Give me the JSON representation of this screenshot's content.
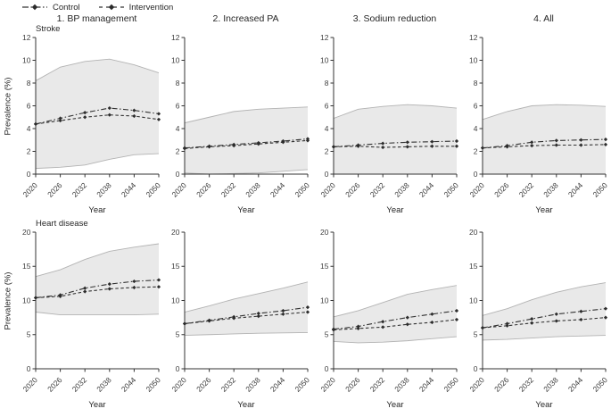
{
  "legend": {
    "items": [
      {
        "label": "Control",
        "style": "dashdot"
      },
      {
        "label": "Intervention",
        "style": "dashed"
      }
    ]
  },
  "columns": [
    "1. BP management",
    "2. Increased PA",
    "3. Sodium reduction",
    "4. All"
  ],
  "rows": [
    "Stroke",
    "Heart disease"
  ],
  "axes": {
    "x_label": "Year",
    "y_label": "Prevalence (%)",
    "x_ticks": [
      2020,
      2026,
      2032,
      2038,
      2044,
      2050
    ]
  },
  "colors": {
    "line": "#333333",
    "marker": "#2b2b2b",
    "band_fill": "#e9e9e9",
    "band_edge": "#b3b3b3",
    "axis": "#333333",
    "tick_text": "#404040"
  },
  "chart_data": {
    "type": "line",
    "x_label": "Year",
    "y_label": "Prevalence (%)",
    "x": [
      2020,
      2026,
      2032,
      2038,
      2044,
      2050
    ],
    "legend_position": "top-left",
    "grid": false,
    "panels": [
      {
        "row": "Stroke",
        "column": "1. BP management",
        "ylim": [
          0,
          12
        ],
        "yticks": [
          0,
          2,
          4,
          6,
          8,
          10,
          12
        ],
        "series": [
          {
            "name": "Control",
            "style": "dashdot",
            "values": [
              4.4,
              4.9,
              5.4,
              5.8,
              5.6,
              5.3
            ]
          },
          {
            "name": "Intervention",
            "style": "dashed",
            "values": [
              4.4,
              4.7,
              5.0,
              5.2,
              5.1,
              4.8
            ]
          }
        ],
        "band": {
          "upper": [
            8.2,
            9.4,
            9.9,
            10.1,
            9.6,
            8.9
          ],
          "lower": [
            0.5,
            0.6,
            0.8,
            1.3,
            1.7,
            1.8
          ]
        }
      },
      {
        "row": "Stroke",
        "column": "2. Increased PA",
        "ylim": [
          0,
          12
        ],
        "yticks": [
          0,
          2,
          4,
          6,
          8,
          10,
          12
        ],
        "series": [
          {
            "name": "Control",
            "style": "dashdot",
            "values": [
              2.3,
              2.45,
              2.6,
              2.75,
              2.9,
              3.1
            ]
          },
          {
            "name": "Intervention",
            "style": "dashed",
            "values": [
              2.25,
              2.4,
              2.5,
              2.65,
              2.8,
              2.95
            ]
          }
        ],
        "band": {
          "upper": [
            4.5,
            5.0,
            5.5,
            5.7,
            5.8,
            5.9
          ],
          "lower": [
            0.1,
            0.0,
            0.05,
            0.1,
            0.25,
            0.4
          ]
        }
      },
      {
        "row": "Stroke",
        "column": "3. Sodium reduction",
        "ylim": [
          0,
          12
        ],
        "yticks": [
          0,
          2,
          4,
          6,
          8,
          10,
          12
        ],
        "series": [
          {
            "name": "Control",
            "style": "dashdot",
            "values": [
              2.4,
              2.55,
              2.7,
              2.8,
              2.85,
              2.9
            ]
          },
          {
            "name": "Intervention",
            "style": "dashed",
            "values": [
              2.4,
              2.45,
              2.35,
              2.4,
              2.45,
              2.45
            ]
          }
        ],
        "band": {
          "upper": [
            4.9,
            5.7,
            5.95,
            6.1,
            6.0,
            5.8
          ],
          "lower": [
            0.0,
            0.0,
            0.0,
            0.0,
            0.0,
            0.0
          ]
        }
      },
      {
        "row": "Stroke",
        "column": "4. All",
        "ylim": [
          0,
          12
        ],
        "yticks": [
          0,
          2,
          4,
          6,
          8,
          10,
          12
        ],
        "series": [
          {
            "name": "Control",
            "style": "dashdot",
            "values": [
              2.3,
              2.5,
              2.8,
              2.95,
              3.0,
              3.05
            ]
          },
          {
            "name": "Intervention",
            "style": "dashed",
            "values": [
              2.3,
              2.4,
              2.5,
              2.55,
              2.55,
              2.6
            ]
          }
        ],
        "band": {
          "upper": [
            4.8,
            5.5,
            6.0,
            6.1,
            6.05,
            5.95
          ],
          "lower": [
            0.0,
            0.0,
            0.0,
            0.0,
            0.0,
            0.0
          ]
        }
      },
      {
        "row": "Heart disease",
        "column": "1. BP management",
        "ylim": [
          0,
          20
        ],
        "yticks": [
          0,
          5,
          10,
          15,
          20
        ],
        "series": [
          {
            "name": "Control",
            "style": "dashdot",
            "values": [
              10.4,
              10.8,
              11.8,
              12.4,
              12.8,
              13.0
            ]
          },
          {
            "name": "Intervention",
            "style": "dashed",
            "values": [
              10.4,
              10.6,
              11.3,
              11.7,
              11.9,
              12.0
            ]
          }
        ],
        "band": {
          "upper": [
            13.5,
            14.5,
            16.0,
            17.2,
            17.8,
            18.3
          ],
          "lower": [
            8.3,
            7.9,
            7.9,
            7.9,
            7.9,
            8.0
          ]
        }
      },
      {
        "row": "Heart disease",
        "column": "2. Increased PA",
        "ylim": [
          0,
          20
        ],
        "yticks": [
          0,
          5,
          10,
          15,
          20
        ],
        "series": [
          {
            "name": "Control",
            "style": "dashdot",
            "values": [
              6.6,
              7.1,
              7.6,
              8.1,
              8.5,
              9.0
            ]
          },
          {
            "name": "Intervention",
            "style": "dashed",
            "values": [
              6.6,
              7.0,
              7.4,
              7.7,
              8.0,
              8.3
            ]
          }
        ],
        "band": {
          "upper": [
            8.3,
            9.2,
            10.2,
            11.0,
            11.8,
            12.7
          ],
          "lower": [
            4.9,
            5.0,
            5.1,
            5.2,
            5.25,
            5.3
          ]
        }
      },
      {
        "row": "Heart disease",
        "column": "3. Sodium reduction",
        "ylim": [
          0,
          20
        ],
        "yticks": [
          0,
          5,
          10,
          15,
          20
        ],
        "series": [
          {
            "name": "Control",
            "style": "dashdot",
            "values": [
              5.8,
              6.2,
              6.9,
              7.5,
              8.0,
              8.5
            ]
          },
          {
            "name": "Intervention",
            "style": "dashed",
            "values": [
              5.7,
              5.9,
              6.1,
              6.5,
              6.8,
              7.2
            ]
          }
        ],
        "band": {
          "upper": [
            7.6,
            8.5,
            9.7,
            10.9,
            11.6,
            12.2
          ],
          "lower": [
            4.0,
            3.8,
            3.9,
            4.1,
            4.4,
            4.7
          ]
        }
      },
      {
        "row": "Heart disease",
        "column": "4. All",
        "ylim": [
          0,
          20
        ],
        "yticks": [
          0,
          5,
          10,
          15,
          20
        ],
        "series": [
          {
            "name": "Control",
            "style": "dashdot",
            "values": [
              6.0,
              6.6,
              7.3,
              8.0,
              8.4,
              8.8
            ]
          },
          {
            "name": "Intervention",
            "style": "dashed",
            "values": [
              6.0,
              6.3,
              6.7,
              7.0,
              7.2,
              7.5
            ]
          }
        ],
        "band": {
          "upper": [
            7.8,
            8.8,
            10.1,
            11.2,
            12.0,
            12.6
          ],
          "lower": [
            4.2,
            4.3,
            4.5,
            4.7,
            4.8,
            4.9
          ]
        }
      }
    ]
  }
}
